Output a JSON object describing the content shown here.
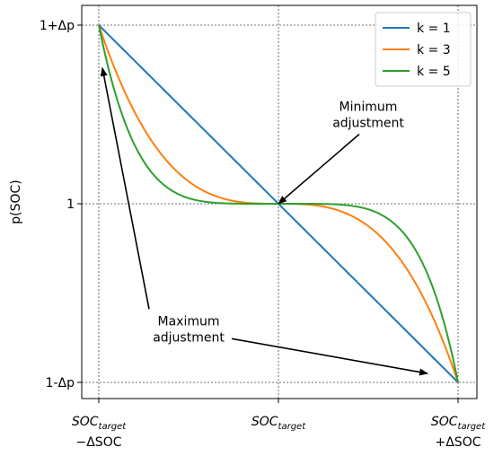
{
  "chart_data": {
    "type": "line",
    "x_domain": [
      -1,
      1
    ],
    "y_domain": [
      -1,
      1
    ],
    "ylabel": "p(SOC)",
    "x_ticks": [
      {
        "value": -1,
        "base": "SOC",
        "sub": "target",
        "line2": "−ΔSOC"
      },
      {
        "value": 0,
        "base": "SOC",
        "sub": "target",
        "line2": ""
      },
      {
        "value": 1,
        "base": "SOC",
        "sub": "target",
        "line2": "+ΔSOC"
      }
    ],
    "y_ticks": [
      {
        "value": 1,
        "label": "1+Δp"
      },
      {
        "value": 0,
        "label": "1"
      },
      {
        "value": -1,
        "label": "1-Δp"
      }
    ],
    "grid": true,
    "grid_style": "dotted",
    "legend_position": "top-right",
    "function_note": "y = -sign(x)*|x|^k",
    "series": [
      {
        "name": "k = 1",
        "k": 1,
        "color": "#1f77b4"
      },
      {
        "name": "k = 3",
        "k": 3,
        "color": "#ff7f0e"
      },
      {
        "name": "k = 5",
        "k": 5,
        "color": "#2ca02c"
      }
    ],
    "annotations": [
      {
        "text_lines": [
          "Minimum",
          "adjustment"
        ],
        "text_xy": [
          0.5,
          0.5
        ],
        "arrows_to": [
          [
            0.0,
            0.0
          ]
        ]
      },
      {
        "text_lines": [
          "Maximum",
          "adjustment"
        ],
        "text_xy": [
          -0.5,
          -0.7
        ],
        "arrows_to": [
          [
            -0.98,
            0.76
          ],
          [
            0.83,
            -0.95
          ]
        ]
      }
    ]
  }
}
